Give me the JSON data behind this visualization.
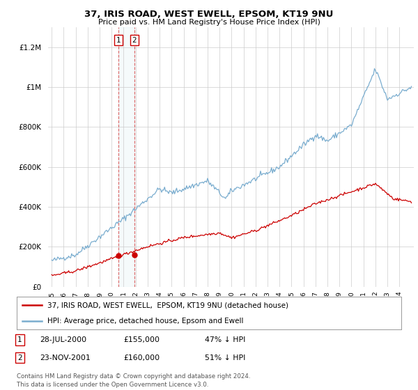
{
  "title": "37, IRIS ROAD, WEST EWELL, EPSOM, KT19 9NU",
  "subtitle": "Price paid vs. HM Land Registry's House Price Index (HPI)",
  "ytick_values": [
    0,
    200000,
    400000,
    600000,
    800000,
    1000000,
    1200000
  ],
  "ylim": [
    0,
    1300000
  ],
  "xlim_start": 1994.7,
  "xlim_end": 2025.2,
  "red_color": "#cc0000",
  "blue_color": "#7aadcf",
  "transaction1_x": 2000.57,
  "transaction1_y": 155000,
  "transaction2_x": 2001.9,
  "transaction2_y": 160000,
  "legend_red": "37, IRIS ROAD, WEST EWELL,  EPSOM, KT19 9NU (detached house)",
  "legend_blue": "HPI: Average price, detached house, Epsom and Ewell",
  "footer": "Contains HM Land Registry data © Crown copyright and database right 2024.\nThis data is licensed under the Open Government Licence v3.0.",
  "background_color": "#ffffff",
  "grid_color": "#cccccc"
}
